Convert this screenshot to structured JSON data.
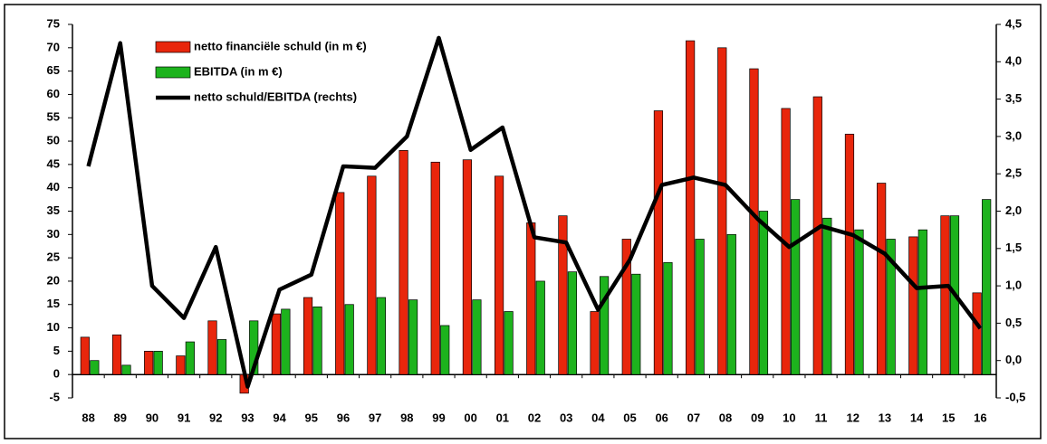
{
  "chart_data": {
    "type": "bar",
    "categories": [
      "88",
      "89",
      "90",
      "91",
      "92",
      "93",
      "94",
      "95",
      "96",
      "97",
      "98",
      "99",
      "00",
      "01",
      "02",
      "03",
      "04",
      "05",
      "06",
      "07",
      "08",
      "09",
      "10",
      "11",
      "12",
      "13",
      "14",
      "15",
      "16"
    ],
    "series": [
      {
        "name": "netto financiële schuld (in m €)",
        "type": "bar",
        "color": "#e8260c",
        "values": [
          8,
          8.5,
          5,
          4,
          11.5,
          -4,
          13,
          16.5,
          39,
          42.5,
          48,
          45.5,
          46,
          42.5,
          32.5,
          34,
          13.5,
          29,
          56.5,
          71.5,
          70,
          65.5,
          57,
          59.5,
          51.5,
          41,
          29.5,
          34,
          17.5
        ]
      },
      {
        "name": "EBITDA (in m €)",
        "type": "bar",
        "color": "#1db31d",
        "values": [
          3,
          2,
          5,
          7,
          7.5,
          11.5,
          14,
          14.5,
          15,
          16.5,
          16,
          10.5,
          16,
          13.5,
          20,
          22,
          21,
          21.5,
          24,
          29,
          30,
          35,
          37.5,
          33.5,
          31,
          29,
          31,
          34,
          37.5
        ]
      },
      {
        "name": "netto schuld/EBITDA (rechts)",
        "type": "line",
        "axis": "y2",
        "color": "#000000",
        "values": [
          2.6,
          4.25,
          1.0,
          0.57,
          1.52,
          -0.35,
          0.95,
          1.15,
          2.6,
          2.58,
          3.0,
          4.32,
          2.82,
          3.12,
          1.65,
          1.58,
          0.68,
          1.35,
          2.35,
          2.45,
          2.35,
          1.9,
          1.52,
          1.8,
          1.68,
          1.43,
          0.97,
          1.0,
          0.43
        ]
      }
    ],
    "ylim": [
      -5,
      75
    ],
    "yticks": [
      -5,
      0,
      5,
      10,
      15,
      20,
      25,
      30,
      35,
      40,
      45,
      50,
      55,
      60,
      65,
      70,
      75
    ],
    "y2lim": [
      -0.5,
      4.5
    ],
    "y2ticks": [
      {
        "value": -0.5,
        "label": "-0,5"
      },
      {
        "value": 0,
        "label": "0,0"
      },
      {
        "value": 0.5,
        "label": "0,5"
      },
      {
        "value": 1,
        "label": "1,0"
      },
      {
        "value": 1.5,
        "label": "1,5"
      },
      {
        "value": 2,
        "label": "2,0"
      },
      {
        "value": 2.5,
        "label": "2,5"
      },
      {
        "value": 3,
        "label": "3,0"
      },
      {
        "value": 3.5,
        "label": "3,5"
      },
      {
        "value": 4,
        "label": "4,0"
      },
      {
        "value": 4.5,
        "label": "4,5"
      }
    ],
    "legend": "upper-left"
  }
}
